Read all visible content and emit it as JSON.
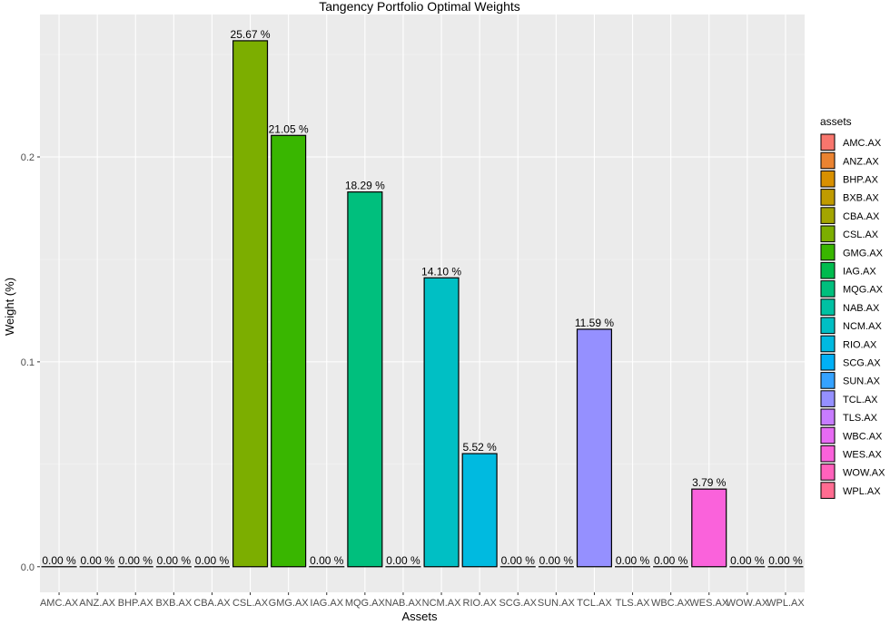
{
  "chart_data": {
    "type": "bar",
    "title": "Tangency Portfolio Optimal Weights",
    "xlabel": "Assets",
    "ylabel": "Weight (%)",
    "ylim": [
      -0.0125,
      0.2695
    ],
    "yticks": [
      0.0,
      0.1,
      0.2
    ],
    "ytick_labels": [
      "0.0",
      "0.1",
      "0.2"
    ],
    "grid": true,
    "legend": {
      "title": "assets",
      "position": "right"
    },
    "categories": [
      "AMC.AX",
      "ANZ.AX",
      "BHP.AX",
      "BXB.AX",
      "CBA.AX",
      "CSL.AX",
      "GMG.AX",
      "IAG.AX",
      "MQG.AX",
      "NAB.AX",
      "NCM.AX",
      "RIO.AX",
      "SCG.AX",
      "SUN.AX",
      "TCL.AX",
      "TLS.AX",
      "WBC.AX",
      "WES.AX",
      "WOW.AX",
      "WPL.AX"
    ],
    "values": [
      0.0,
      0.0,
      0.0,
      0.0,
      0.0,
      0.2567,
      0.2105,
      0.0,
      0.1829,
      0.0,
      0.141,
      0.0552,
      0.0,
      0.0,
      0.1159,
      0.0,
      0.0,
      0.0379,
      0.0,
      0.0
    ],
    "data_labels": [
      "0.00 %",
      "0.00 %",
      "0.00 %",
      "0.00 %",
      "0.00 %",
      "25.67 %",
      "21.05 %",
      "0.00 %",
      "18.29 %",
      "0.00 %",
      "14.10 %",
      "5.52 %",
      "0.00 %",
      "0.00 %",
      "11.59 %",
      "0.00 %",
      "0.00 %",
      "3.79 %",
      "0.00 %",
      "0.00 %"
    ],
    "colors": [
      "#F8766D",
      "#EA8331",
      "#D89000",
      "#C09B00",
      "#A3A500",
      "#7CAE00",
      "#39B600",
      "#00BB4E",
      "#00BF7D",
      "#00C1A3",
      "#00BFC4",
      "#00BAE0",
      "#00B0F6",
      "#35A2FF",
      "#9590FF",
      "#C77CFF",
      "#E76BF3",
      "#FA62DB",
      "#FF62BC",
      "#FF6C91"
    ]
  }
}
